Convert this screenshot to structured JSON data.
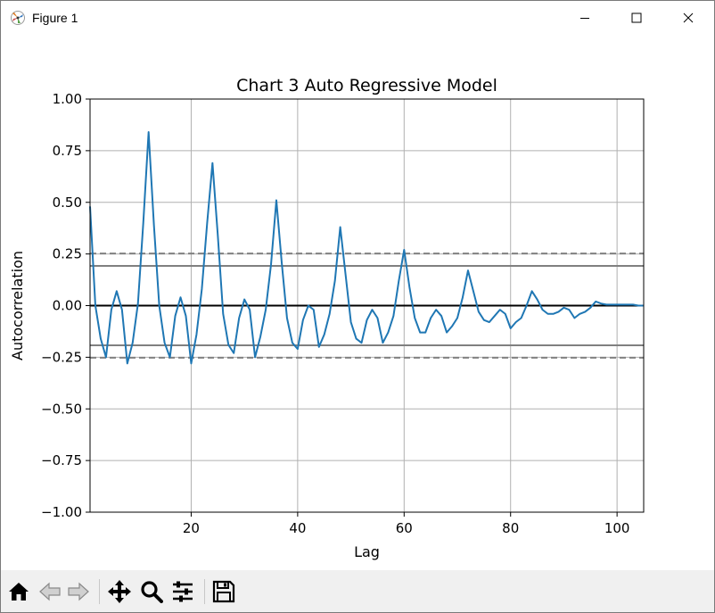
{
  "window": {
    "title": "Figure 1",
    "icon": "matplotlib-figure-icon",
    "controls": [
      "minimize-icon",
      "maximize-icon",
      "close-icon"
    ]
  },
  "toolbar": {
    "buttons": [
      {
        "name": "home-button",
        "icon": "home-icon"
      },
      {
        "name": "back-button",
        "icon": "back-arrow-icon"
      },
      {
        "name": "forward-button",
        "icon": "forward-arrow-icon"
      },
      {
        "name": "pan-button",
        "icon": "move-icon"
      },
      {
        "name": "zoom-button",
        "icon": "zoom-icon"
      },
      {
        "name": "configure-subplots-button",
        "icon": "sliders-icon"
      },
      {
        "name": "save-button",
        "icon": "save-icon"
      }
    ]
  },
  "colors": {
    "series": "#1f77b4",
    "grid": "#b0b0b0",
    "confidence": "#808080",
    "zero_line": "#000000"
  },
  "chart_data": {
    "type": "line",
    "title": "Chart 3 Auto Regressive Model",
    "xlabel": "Lag",
    "ylabel": "Autocorrelation",
    "xlim": [
      1,
      105
    ],
    "ylim": [
      -1.0,
      1.0
    ],
    "xticks": [
      20,
      40,
      60,
      80,
      100
    ],
    "xtick_labels": [
      "20",
      "40",
      "60",
      "80",
      "100"
    ],
    "yticks": [
      -1.0,
      -0.75,
      -0.5,
      -0.25,
      0.0,
      0.25,
      0.5,
      0.75,
      1.0
    ],
    "ytick_labels": [
      "−1.00",
      "−0.75",
      "−0.50",
      "−0.25",
      "0.00",
      "0.25",
      "0.50",
      "0.75",
      "1.00"
    ],
    "grid": true,
    "reference_lines": [
      {
        "y": 0.0,
        "style": "solid",
        "color": "#000000"
      },
      {
        "y": 0.192,
        "style": "solid",
        "color": "#808080"
      },
      {
        "y": -0.192,
        "style": "solid",
        "color": "#808080"
      },
      {
        "y": 0.252,
        "style": "dashed",
        "color": "#808080"
      },
      {
        "y": -0.252,
        "style": "dashed",
        "color": "#808080"
      }
    ],
    "series": [
      {
        "color": "#1f77b4",
        "x": [
          1,
          2,
          3,
          4,
          5,
          6,
          7,
          8,
          9,
          10,
          11,
          12,
          13,
          14,
          15,
          16,
          17,
          18,
          19,
          20,
          21,
          22,
          23,
          24,
          25,
          26,
          27,
          28,
          29,
          30,
          31,
          32,
          33,
          34,
          35,
          36,
          37,
          38,
          39,
          40,
          41,
          42,
          43,
          44,
          45,
          46,
          47,
          48,
          49,
          50,
          51,
          52,
          53,
          54,
          55,
          56,
          57,
          58,
          59,
          60,
          61,
          62,
          63,
          64,
          65,
          66,
          67,
          68,
          69,
          70,
          71,
          72,
          73,
          74,
          75,
          76,
          77,
          78,
          79,
          80,
          81,
          82,
          83,
          84,
          85,
          86,
          87,
          88,
          89,
          90,
          91,
          92,
          93,
          94,
          95,
          96,
          97,
          98,
          99,
          100,
          101,
          102,
          103,
          104,
          105
        ],
        "values": [
          0.48,
          0.0,
          -0.16,
          -0.25,
          -0.02,
          0.07,
          -0.02,
          -0.28,
          -0.18,
          0.01,
          0.4,
          0.84,
          0.39,
          0.0,
          -0.18,
          -0.25,
          -0.05,
          0.04,
          -0.05,
          -0.28,
          -0.14,
          0.08,
          0.4,
          0.69,
          0.34,
          -0.04,
          -0.19,
          -0.23,
          -0.06,
          0.03,
          -0.02,
          -0.25,
          -0.15,
          -0.02,
          0.2,
          0.51,
          0.21,
          -0.06,
          -0.18,
          -0.21,
          -0.07,
          0.0,
          -0.02,
          -0.2,
          -0.14,
          -0.04,
          0.12,
          0.38,
          0.15,
          -0.08,
          -0.16,
          -0.18,
          -0.07,
          -0.02,
          -0.06,
          -0.18,
          -0.13,
          -0.05,
          0.12,
          0.27,
          0.09,
          -0.06,
          -0.13,
          -0.13,
          -0.06,
          -0.02,
          -0.05,
          -0.13,
          -0.1,
          -0.06,
          0.04,
          0.17,
          0.07,
          -0.03,
          -0.07,
          -0.08,
          -0.05,
          -0.02,
          -0.04,
          -0.11,
          -0.08,
          -0.06,
          0.0,
          0.07,
          0.03,
          -0.02,
          -0.04,
          -0.04,
          -0.03,
          -0.01,
          -0.02,
          -0.06,
          -0.04,
          -0.03,
          -0.01,
          0.02,
          0.01,
          0.005,
          0.005,
          0.005,
          0.005,
          0.005,
          0.005,
          0.0,
          0.0
        ]
      }
    ]
  }
}
